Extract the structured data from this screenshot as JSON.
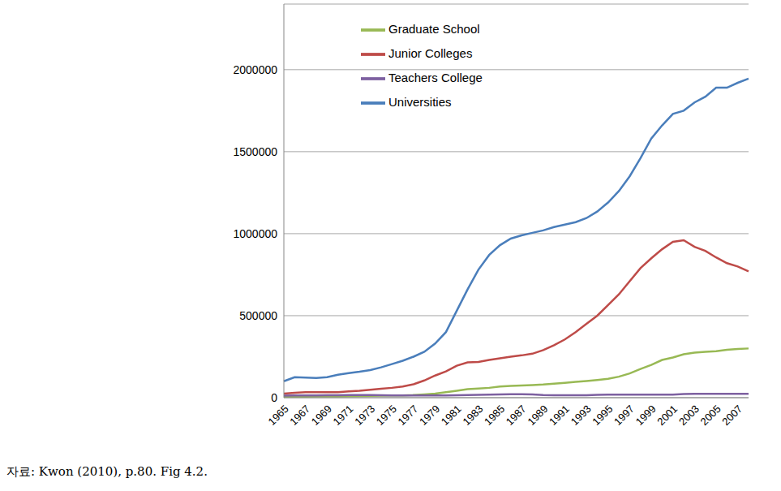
{
  "chart_data": {
    "type": "line",
    "source": "자료: Kwon (2010), p.80. Fig 4.2.",
    "categories": [
      "1965",
      null,
      "1967",
      null,
      "1969",
      null,
      "1971",
      null,
      "1973",
      null,
      "1975",
      null,
      "1977",
      null,
      "1979",
      null,
      "1981",
      null,
      "1983",
      null,
      "1985",
      null,
      "1987",
      null,
      "1989",
      null,
      "1991",
      null,
      "1993",
      null,
      "1995",
      null,
      "1997",
      null,
      "1999",
      null,
      "2001",
      null,
      "2003",
      null,
      "2005",
      null,
      "2007",
      null
    ],
    "series": [
      {
        "name": "Universities",
        "color": "#4a7ebb",
        "values": [
          100000,
          125000,
          122000,
          120000,
          125000,
          140000,
          150000,
          158000,
          168000,
          185000,
          205000,
          225000,
          250000,
          280000,
          330000,
          400000,
          530000,
          660000,
          780000,
          870000,
          930000,
          970000,
          990000,
          1005000,
          1020000,
          1040000,
          1055000,
          1070000,
          1095000,
          1135000,
          1190000,
          1260000,
          1350000,
          1460000,
          1580000,
          1660000,
          1730000,
          1750000,
          1800000,
          1835000,
          1890000,
          1890000,
          1920000,
          1945000
        ]
      },
      {
        "name": "Junior Colleges",
        "color": "#be4b48",
        "values": [
          25000,
          30000,
          33000,
          33000,
          33000,
          33000,
          38000,
          42000,
          48000,
          55000,
          60000,
          68000,
          82000,
          105000,
          135000,
          160000,
          195000,
          215000,
          218000,
          230000,
          240000,
          250000,
          258000,
          268000,
          290000,
          320000,
          355000,
          400000,
          450000,
          500000,
          565000,
          630000,
          710000,
          790000,
          850000,
          905000,
          950000,
          960000,
          920000,
          895000,
          855000,
          820000,
          800000,
          770000
        ]
      },
      {
        "name": "Graduate School",
        "color": "#98b954",
        "values": [
          5000,
          6000,
          6500,
          7000,
          7500,
          8000,
          9000,
          10000,
          11000,
          12000,
          13000,
          14000,
          16000,
          20000,
          25000,
          33000,
          42000,
          52000,
          56000,
          60000,
          68000,
          72000,
          74000,
          77000,
          80000,
          85000,
          90000,
          96000,
          102000,
          108000,
          115000,
          128000,
          148000,
          175000,
          200000,
          230000,
          245000,
          265000,
          275000,
          280000,
          283000,
          292000,
          297000,
          300000
        ]
      },
      {
        "name": "Teachers College",
        "color": "#7d60a0",
        "values": [
          12000,
          13000,
          13000,
          14000,
          15000,
          15000,
          16000,
          16000,
          16000,
          15000,
          14000,
          14000,
          14000,
          14000,
          14000,
          14000,
          15000,
          16000,
          17000,
          18000,
          20000,
          21000,
          21000,
          20000,
          16000,
          15000,
          15000,
          15000,
          15000,
          17000,
          18000,
          18000,
          18000,
          18000,
          19000,
          19000,
          19000,
          22000,
          23000,
          23000,
          23000,
          23000,
          23000,
          23000
        ]
      }
    ],
    "ylim": [
      0,
      2400000
    ],
    "yticks": [
      0,
      500000,
      1000000,
      1500000,
      2000000
    ],
    "grid": true,
    "legend": "top"
  }
}
